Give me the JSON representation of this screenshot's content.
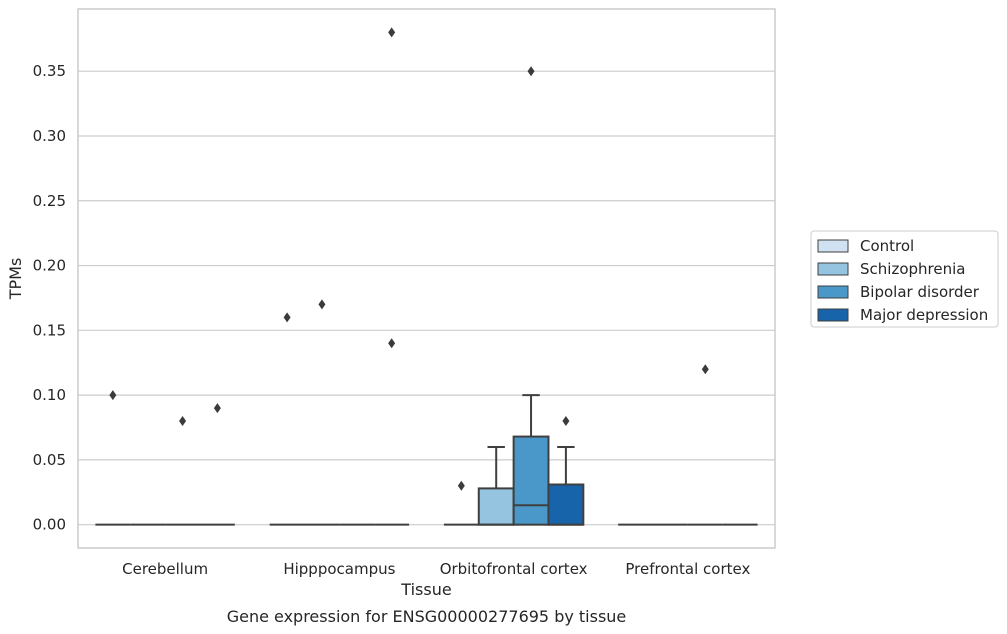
{
  "chart_data": {
    "type": "box",
    "title": "",
    "caption": "Gene expression for ENSG00000277695 by tissue",
    "xlabel": "Tissue",
    "ylabel": "TPMs",
    "ylim": [
      -0.018,
      0.398
    ],
    "yticks": [
      0.0,
      0.05,
      0.1,
      0.15,
      0.2,
      0.25,
      0.3,
      0.35
    ],
    "ytick_labels": [
      "0.00",
      "0.05",
      "0.10",
      "0.15",
      "0.20",
      "0.25",
      "0.30",
      "0.35"
    ],
    "categories": [
      "Cerebellum",
      "Hipppocampus",
      "Orbitofrontal cortex",
      "Prefrontal cortex"
    ],
    "grid": "horizontal",
    "legend_placement": "right",
    "series": [
      {
        "name": "Control",
        "color": "#d0e1f2",
        "boxes": [
          {
            "q1": 0,
            "median": 0,
            "q3": 0,
            "whisker_low": 0,
            "whisker_high": 0,
            "outliers": [
              0.1
            ]
          },
          {
            "q1": 0,
            "median": 0,
            "q3": 0,
            "whisker_low": 0,
            "whisker_high": 0,
            "outliers": [
              0.16
            ]
          },
          {
            "q1": 0,
            "median": 0,
            "q3": 0,
            "whisker_low": 0,
            "whisker_high": 0,
            "outliers": [
              0.03
            ]
          },
          {
            "q1": 0,
            "median": 0,
            "q3": 0,
            "whisker_low": 0,
            "whisker_high": 0,
            "outliers": []
          }
        ]
      },
      {
        "name": "Schizophrenia",
        "color": "#94c4df",
        "boxes": [
          {
            "q1": 0,
            "median": 0,
            "q3": 0,
            "whisker_low": 0,
            "whisker_high": 0,
            "outliers": []
          },
          {
            "q1": 0,
            "median": 0,
            "q3": 0,
            "whisker_low": 0,
            "whisker_high": 0,
            "outliers": [
              0.17
            ]
          },
          {
            "q1": 0,
            "median": 0,
            "q3": 0.028,
            "whisker_low": 0,
            "whisker_high": 0.06,
            "outliers": []
          },
          {
            "q1": 0,
            "median": 0,
            "q3": 0,
            "whisker_low": 0,
            "whisker_high": 0,
            "outliers": []
          }
        ]
      },
      {
        "name": "Bipolar disorder",
        "color": "#4a98c9",
        "boxes": [
          {
            "q1": 0,
            "median": 0,
            "q3": 0,
            "whisker_low": 0,
            "whisker_high": 0,
            "outliers": [
              0.08
            ]
          },
          {
            "q1": 0,
            "median": 0,
            "q3": 0,
            "whisker_low": 0,
            "whisker_high": 0,
            "outliers": []
          },
          {
            "q1": 0,
            "median": 0.015,
            "q3": 0.068,
            "whisker_low": 0,
            "whisker_high": 0.1,
            "outliers": [
              0.35
            ]
          },
          {
            "q1": 0,
            "median": 0,
            "q3": 0,
            "whisker_low": 0,
            "whisker_high": 0,
            "outliers": [
              0.12
            ]
          }
        ]
      },
      {
        "name": "Major depression",
        "color": "#1764ab",
        "boxes": [
          {
            "q1": 0,
            "median": 0,
            "q3": 0,
            "whisker_low": 0,
            "whisker_high": 0,
            "outliers": [
              0.09
            ]
          },
          {
            "q1": 0,
            "median": 0,
            "q3": 0,
            "whisker_low": 0,
            "whisker_high": 0,
            "outliers": [
              0.38,
              0.14
            ]
          },
          {
            "q1": 0,
            "median": 0,
            "q3": 0.031,
            "whisker_low": 0,
            "whisker_high": 0.06,
            "outliers": [
              0.08
            ]
          },
          {
            "q1": 0,
            "median": 0,
            "q3": 0,
            "whisker_low": 0,
            "whisker_high": 0,
            "outliers": []
          }
        ]
      }
    ]
  }
}
